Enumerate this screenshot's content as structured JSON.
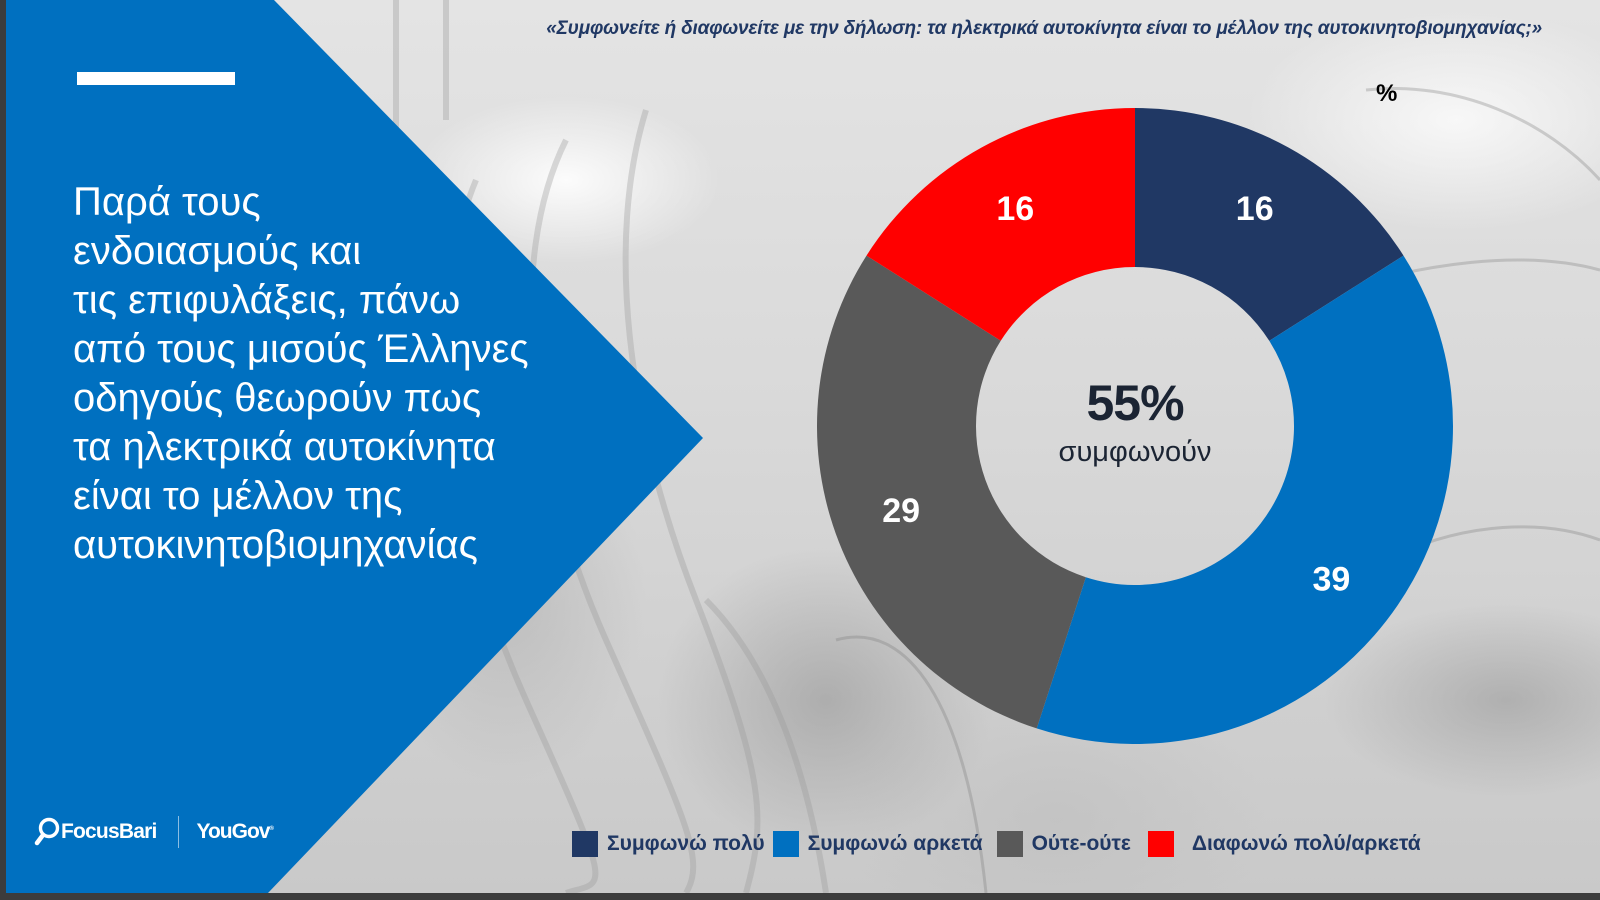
{
  "slide": {
    "question": "«Συμφωνείτε ή διαφωνείτε με την δήλωση: τα ηλεκτρικά αυτοκίνητα είναι το μέλλον της αυτοκινητοβιομηχανίας;»",
    "headline": "Παρά τους\nενδοιασμούς και\nτις επιφυλάξεις, πάνω\nαπό τους μισούς Έλληνες\nοδηγούς θεωρούν πως\nτα ηλεκτρικά αυτοκίνητα\nείναι το μέλλον της\nαυτοκινητοβιομηχανίας",
    "unit_label": "%",
    "center_value": "55%",
    "center_label": "συμφωνούν",
    "logos": {
      "focus_bari": "FocusBari",
      "yougov": "YouGov"
    },
    "colors": {
      "brand_blue": "#0070C0",
      "navy": "#203864",
      "grey": "#595959",
      "red": "#FF0000"
    }
  },
  "legend": [
    {
      "label": "Συμφωνώ πολύ",
      "color": "#203864"
    },
    {
      "label": "Συμφωνώ αρκετά",
      "color": "#0070C0"
    },
    {
      "label": "Ούτε-ούτε",
      "color": "#595959"
    },
    {
      "label": "Διαφωνώ πολύ/αρκετά",
      "color": "#FF0000"
    }
  ],
  "chart_data": {
    "type": "pie",
    "subtype": "donut",
    "title": "«Συμφωνείτε ή διαφωνείτε με την δήλωση: τα ηλεκτρικά αυτοκίνητα είναι το μέλλον της αυτοκινητοβιομηχανίας;»",
    "unit": "%",
    "categories": [
      "Συμφωνώ πολύ",
      "Συμφωνώ αρκετά",
      "Ούτε-ούτε",
      "Διαφωνώ πολύ/αρκετά"
    ],
    "values": [
      16,
      39,
      29,
      16
    ],
    "labels": [
      "16",
      "39",
      "29",
      "16"
    ],
    "colors": [
      "#203864",
      "#0070C0",
      "#595959",
      "#FF0000"
    ],
    "start_angle_deg": 0,
    "direction": "clockwise",
    "center_annotation": {
      "value": "55%",
      "label": "συμφωνούν"
    },
    "legend_position": "bottom"
  }
}
